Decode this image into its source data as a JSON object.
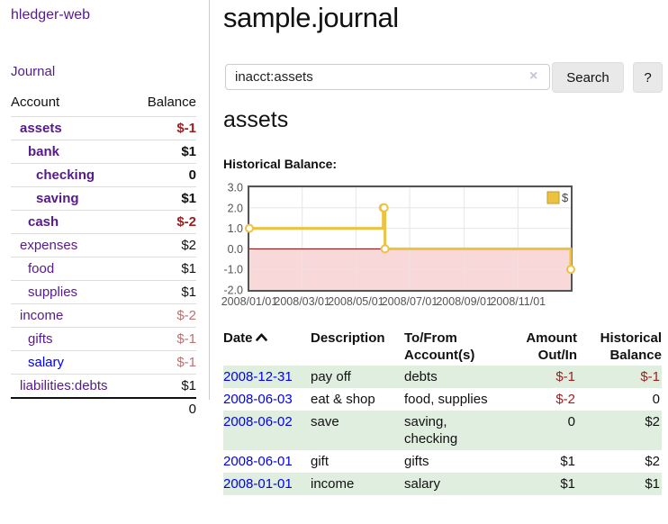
{
  "app": {
    "brand": "hledger-web",
    "nav_journal": "Journal"
  },
  "sidebar": {
    "columns": {
      "account": "Account",
      "balance": "Balance"
    },
    "accounts": [
      {
        "name": "assets",
        "indent": 1,
        "bold": true,
        "balance": "$-1",
        "neg": "strong"
      },
      {
        "name": "bank",
        "indent": 2,
        "bold": true,
        "balance": "$1"
      },
      {
        "name": "checking",
        "indent": 3,
        "bold": true,
        "balance": "0"
      },
      {
        "name": "saving",
        "indent": 3,
        "bold": true,
        "balance": "$1"
      },
      {
        "name": "cash",
        "indent": 2,
        "bold": true,
        "balance": "$-2",
        "neg": "strong"
      },
      {
        "name": "expenses",
        "indent": 1,
        "bold": false,
        "balance": "$2"
      },
      {
        "name": "food",
        "indent": 2,
        "bold": false,
        "balance": "$1"
      },
      {
        "name": "supplies",
        "indent": 2,
        "bold": false,
        "balance": "$1"
      },
      {
        "name": "income",
        "indent": 1,
        "bold": false,
        "balance": "$-2",
        "neg": "muted"
      },
      {
        "name": "gifts",
        "indent": 2,
        "bold": false,
        "balance": "$-1",
        "neg": "muted"
      },
      {
        "name": "salary",
        "indent": 2,
        "bold": false,
        "balance": "$-1",
        "neg": "muted",
        "link_style": "blue"
      },
      {
        "name": "liabilities:debts",
        "indent": 1,
        "bold": false,
        "balance": "$1"
      }
    ],
    "total": "0"
  },
  "header": {
    "title": "sample.journal"
  },
  "search": {
    "value": "inacct:assets",
    "clear_icon": "×",
    "button_label": "Search",
    "help_label": "?"
  },
  "account_page": {
    "title": "assets",
    "chart_label": "Historical Balance:"
  },
  "chart_data": {
    "type": "line",
    "step": true,
    "legend": [
      {
        "label": "$",
        "color": "#edc240"
      }
    ],
    "legend_position": "top-right",
    "series": [
      {
        "name": "$",
        "points": [
          [
            "2008-01-01",
            1
          ],
          [
            "2008-06-01",
            2
          ],
          [
            "2008-06-02",
            2
          ],
          [
            "2008-06-03",
            0
          ],
          [
            "2008-12-31",
            -1
          ]
        ]
      }
    ],
    "x_start": "2008-01-01",
    "x_end": "2008-12-31",
    "x_ticks": [
      "2008/01/01",
      "2008/03/01",
      "2008/05/01",
      "2008/07/01",
      "2008/09/01",
      "2008/11/01"
    ],
    "y_ticks": [
      "3.0",
      "2.0",
      "1.0",
      "0.0",
      "-1.0",
      "-2.0"
    ],
    "ylim": [
      -2,
      3
    ],
    "grid": true,
    "below_zero_shaded": true
  },
  "register": {
    "headers": {
      "date": "Date",
      "description": "Description",
      "tofrom": "To/From Account(s)",
      "amount": "Amount Out/In",
      "balance": "Historical Balance"
    },
    "sort": {
      "column": "date",
      "direction": "ascending"
    },
    "rows": [
      {
        "date": "2008-12-31",
        "description": "pay off",
        "tofrom": "debts",
        "amount": "$-1",
        "amount_neg": true,
        "balance": "$-1",
        "balance_neg": true,
        "highlight": true
      },
      {
        "date": "2008-06-03",
        "description": "eat & shop",
        "tofrom": "food, supplies",
        "amount": "$-2",
        "amount_neg": true,
        "balance": "0",
        "balance_neg": false,
        "highlight": false
      },
      {
        "date": "2008-06-02",
        "description": "save",
        "tofrom": "saving, checking",
        "amount": "0",
        "amount_neg": false,
        "balance": "$2",
        "balance_neg": false,
        "highlight": true
      },
      {
        "date": "2008-06-01",
        "description": "gift",
        "tofrom": "gifts",
        "amount": "$1",
        "amount_neg": false,
        "balance": "$2",
        "balance_neg": false,
        "highlight": false
      },
      {
        "date": "2008-01-01",
        "description": "income",
        "tofrom": "salary",
        "amount": "$1",
        "amount_neg": false,
        "balance": "$1",
        "balance_neg": false,
        "highlight": true
      }
    ]
  },
  "colors": {
    "link_purple": "#551a8b",
    "link_blue": "#0000ee",
    "negative_strong": "#9d1d1d",
    "negative_muted": "#bb7272",
    "row_highlight_green": "#e0eee0",
    "chart_line_gold": "#edc240",
    "chart_marker_fill": "#ffffff",
    "chart_below_zero_fill": "#f8d8d8",
    "chart_zero_line": "#8b0000",
    "chart_border": "#545454",
    "chart_grid": "#e6e6e6",
    "chart_tick_text": "#545454"
  }
}
